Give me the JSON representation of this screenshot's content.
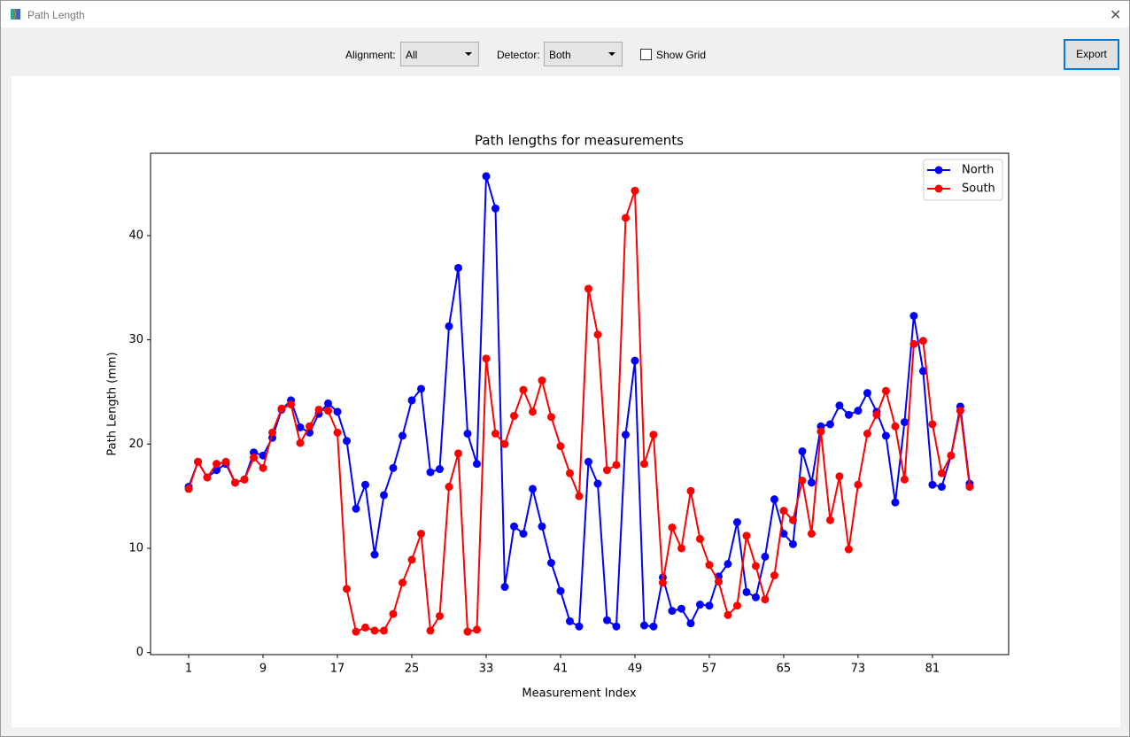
{
  "window": {
    "title": "Path Length"
  },
  "toolbar": {
    "alignment_label": "Alignment:",
    "alignment_value": "All",
    "detector_label": "Detector:",
    "detector_value": "Both",
    "grid_label": "Show Grid",
    "grid_checked": false,
    "export": "Export"
  },
  "chart_data": {
    "type": "line",
    "title": "Path lengths for measurements",
    "xlabel": "Measurement Index",
    "ylabel": "Path Length (mm)",
    "x": [
      1,
      2,
      3,
      4,
      5,
      6,
      7,
      8,
      9,
      10,
      11,
      12,
      13,
      14,
      15,
      16,
      17,
      18,
      19,
      20,
      21,
      22,
      23,
      24,
      25,
      26,
      27,
      28,
      29,
      30,
      31,
      32,
      33,
      34,
      35,
      36,
      37,
      38,
      39,
      40,
      41,
      42,
      43,
      44,
      45,
      46,
      47,
      48,
      49,
      50,
      51,
      52,
      53,
      54,
      55,
      56,
      57,
      58,
      59,
      60,
      61,
      62,
      63,
      64,
      65,
      66,
      67,
      68,
      69,
      70,
      71,
      72,
      73,
      74,
      75,
      76,
      77,
      78,
      79,
      80,
      81,
      82,
      83,
      84,
      85
    ],
    "series": [
      {
        "name": "North",
        "color": "#0000ff",
        "values": [
          15.9,
          18.3,
          16.8,
          17.5,
          18.1,
          16.3,
          16.6,
          19.2,
          18.9,
          20.6,
          23.3,
          24.2,
          21.6,
          21.1,
          22.9,
          23.9,
          23.1,
          20.3,
          13.8,
          16.1,
          9.4,
          15.1,
          17.7,
          20.8,
          24.2,
          25.3,
          17.3,
          17.6,
          31.3,
          36.9,
          21.0,
          18.1,
          45.7,
          42.6,
          6.3,
          12.1,
          11.4,
          15.7,
          12.1,
          8.6,
          5.9,
          3.0,
          2.5,
          18.3,
          16.2,
          3.1,
          2.5,
          20.9,
          28.0,
          2.6,
          2.5,
          7.2,
          4.0,
          4.2,
          2.8,
          4.6,
          4.5,
          7.3,
          8.5,
          12.5,
          5.8,
          5.3,
          9.2,
          14.7,
          11.4,
          10.4,
          19.3,
          16.3,
          21.7,
          21.9,
          23.7,
          22.8,
          23.2,
          24.9,
          23.1,
          20.8,
          14.4,
          22.1,
          32.3,
          27.0,
          16.1,
          15.9,
          18.9,
          23.6,
          16.2
        ]
      },
      {
        "name": "South",
        "color": "#ff0000",
        "values": [
          15.7,
          18.3,
          16.8,
          18.1,
          18.3,
          16.3,
          16.6,
          18.7,
          17.7,
          21.1,
          23.4,
          23.8,
          20.1,
          21.7,
          23.3,
          23.2,
          21.1,
          6.1,
          2.0,
          2.4,
          2.1,
          2.1,
          3.7,
          6.7,
          8.9,
          11.4,
          2.1,
          3.5,
          15.9,
          19.1,
          2.0,
          2.2,
          28.2,
          21.0,
          20.0,
          22.7,
          25.2,
          23.1,
          26.1,
          22.6,
          19.8,
          17.2,
          15.0,
          34.9,
          30.5,
          17.5,
          18.0,
          41.7,
          44.3,
          18.1,
          20.9,
          6.7,
          12.0,
          10.0,
          15.5,
          10.9,
          8.4,
          6.8,
          3.6,
          4.5,
          11.2,
          8.3,
          5.1,
          7.4,
          13.6,
          12.7,
          16.5,
          11.4,
          21.2,
          12.7,
          16.9,
          9.9,
          16.1,
          21.0,
          22.8,
          25.1,
          21.7,
          16.6,
          29.6,
          29.9,
          21.9,
          17.2,
          18.9,
          23.2,
          15.9
        ]
      }
    ],
    "xlim": [
      -3.1,
      89.2
    ],
    "ylim": [
      -0.2,
      47.9
    ],
    "xticks": [
      1,
      9,
      17,
      25,
      33,
      41,
      49,
      57,
      65,
      73,
      81
    ],
    "yticks": [
      0,
      10,
      20,
      30,
      40
    ],
    "grid": false,
    "legend": "upper right"
  }
}
